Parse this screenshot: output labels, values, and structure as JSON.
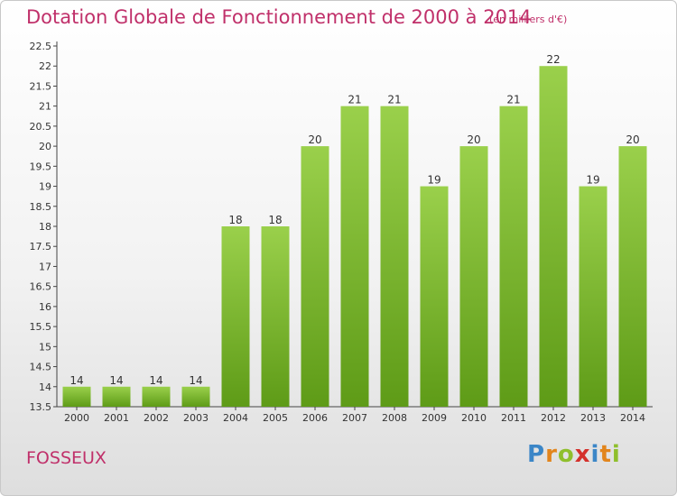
{
  "header": {
    "title": "Dotation Globale de Fonctionnement de 2000 à 2014",
    "unit_note": "(en milliers d'€)"
  },
  "footer": {
    "commune": "FOSSEUX",
    "logo_text": "Proxiti"
  },
  "colors": {
    "bar_top": "#9ad04b",
    "bar_bottom": "#5e9b17",
    "title": "#c0306a"
  },
  "chart_data": {
    "type": "bar",
    "title": "Dotation Globale de Fonctionnement de 2000 à 2014",
    "subtitle": "(en milliers d'€)",
    "xlabel": "",
    "ylabel": "",
    "categories": [
      "2000",
      "2001",
      "2002",
      "2003",
      "2004",
      "2005",
      "2006",
      "2007",
      "2008",
      "2009",
      "2010",
      "2011",
      "2012",
      "2013",
      "2014"
    ],
    "values": [
      14,
      14,
      14,
      14,
      18,
      18,
      20,
      21,
      21,
      19,
      20,
      21,
      22,
      19,
      20
    ],
    "data_labels": [
      "14",
      "14",
      "14",
      "14",
      "18",
      "18",
      "20",
      "21",
      "21",
      "19",
      "20",
      "21",
      "22",
      "19",
      "20"
    ],
    "ylim": [
      13.5,
      22.5
    ],
    "yticks": [
      "13.5",
      "14",
      "14.5",
      "15",
      "15.5",
      "16",
      "16.5",
      "17",
      "17.5",
      "18",
      "18.5",
      "19",
      "19.5",
      "20",
      "20.5",
      "21",
      "21.5",
      "22",
      "22.5"
    ],
    "grid": false,
    "legend": "none"
  }
}
